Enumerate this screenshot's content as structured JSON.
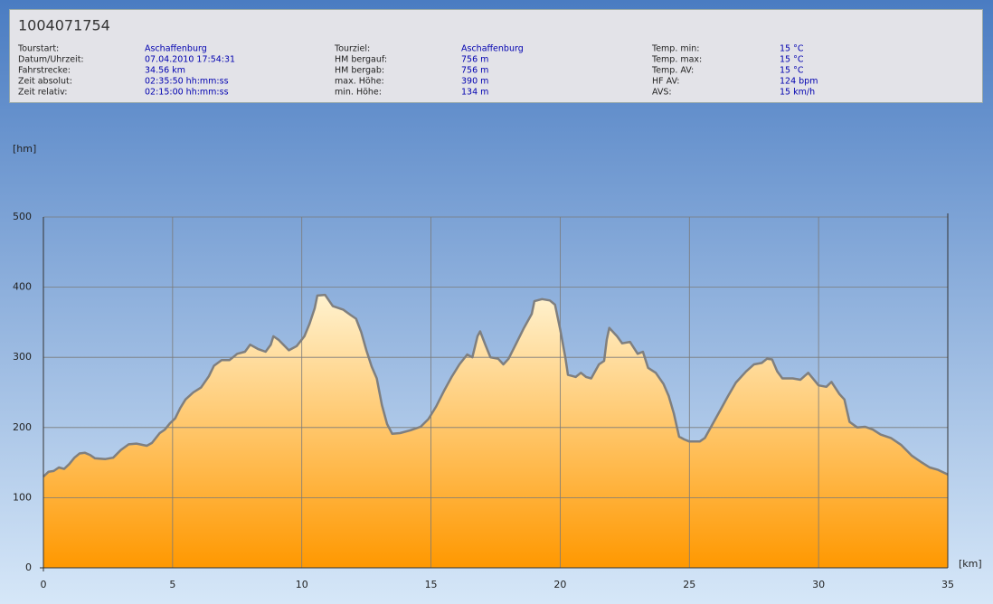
{
  "header": {
    "title": "1004071754",
    "columns": [
      [
        {
          "label": "Tourstart:",
          "value": "Aschaffenburg"
        },
        {
          "label": "Datum/Uhrzeit:",
          "value": "07.04.2010 17:54:31"
        },
        {
          "label": "Fahrstrecke:",
          "value": "34.56 km"
        },
        {
          "label": "Zeit absolut:",
          "value": "02:35:50 hh:mm:ss"
        },
        {
          "label": "Zeit relativ:",
          "value": "02:15:00 hh:mm:ss"
        }
      ],
      [
        {
          "label": "Tourziel:",
          "value": "Aschaffenburg"
        },
        {
          "label": "HM bergauf:",
          "value": "756 m"
        },
        {
          "label": "HM bergab:",
          "value": "756 m"
        },
        {
          "label": "max. Höhe:",
          "value": "390 m"
        },
        {
          "label": "min. Höhe:",
          "value": "134 m"
        }
      ],
      [
        {
          "label": "Temp. min:",
          "value": "15 °C"
        },
        {
          "label": "Temp. max:",
          "value": "15 °C"
        },
        {
          "label": "Temp. AV:",
          "value": "15 °C"
        },
        {
          "label": "HF AV:",
          "value": "124 bpm"
        },
        {
          "label": "AVS:",
          "value": "15 km/h"
        }
      ]
    ]
  },
  "chart_data": {
    "type": "area",
    "x_label": "[km]",
    "y_label": "[hm]",
    "x": [
      0,
      0.2,
      0.4,
      0.6,
      0.8,
      1.0,
      1.2,
      1.4,
      1.6,
      1.8,
      2.0,
      2.4,
      2.7,
      3.0,
      3.3,
      3.6,
      4.0,
      4.2,
      4.5,
      4.7,
      4.9,
      5.1,
      5.3,
      5.5,
      5.8,
      6.1,
      6.4,
      6.6,
      6.9,
      7.2,
      7.5,
      7.8,
      8.0,
      8.3,
      8.6,
      8.8,
      8.9,
      9.1,
      9.5,
      9.8,
      10.1,
      10.3,
      10.5,
      10.6,
      10.9,
      11.2,
      11.6,
      11.9,
      12.1,
      12.3,
      12.5,
      12.7,
      12.9,
      13.1,
      13.3,
      13.5,
      13.8,
      14.2,
      14.6,
      14.9,
      15.2,
      15.5,
      15.8,
      16.1,
      16.4,
      16.6,
      16.8,
      16.9,
      17.1,
      17.3,
      17.6,
      17.8,
      18.0,
      18.3,
      18.6,
      18.9,
      19.0,
      19.3,
      19.6,
      19.8,
      20.0,
      20.2,
      20.3,
      20.6,
      20.8,
      21.0,
      21.2,
      21.5,
      21.7,
      21.8,
      21.9,
      22.2,
      22.4,
      22.7,
      23.0,
      23.2,
      23.4,
      23.7,
      24.0,
      24.2,
      24.4,
      24.6,
      24.8,
      25.0,
      25.4,
      25.6,
      25.9,
      26.2,
      26.5,
      26.8,
      27.2,
      27.5,
      27.8,
      28.0,
      28.2,
      28.4,
      28.6,
      29.0,
      29.3,
      29.6,
      30.0,
      30.3,
      30.5,
      30.8,
      31.0,
      31.2,
      31.5,
      31.8,
      32.1,
      32.4,
      32.8,
      33.2,
      33.6,
      34.0,
      34.3,
      34.6,
      35.0
    ],
    "values": [
      130,
      137,
      138,
      143,
      141,
      148,
      157,
      163,
      164,
      161,
      156,
      155,
      157,
      168,
      176,
      177,
      174,
      178,
      192,
      197,
      206,
      213,
      228,
      240,
      250,
      257,
      273,
      288,
      296,
      296,
      305,
      308,
      318,
      312,
      308,
      318,
      330,
      325,
      310,
      316,
      330,
      348,
      370,
      388,
      389,
      373,
      368,
      360,
      355,
      336,
      310,
      287,
      270,
      232,
      205,
      191,
      192,
      196,
      201,
      212,
      230,
      252,
      272,
      290,
      304,
      300,
      330,
      337,
      318,
      300,
      298,
      290,
      298,
      320,
      342,
      362,
      380,
      383,
      381,
      375,
      340,
      300,
      275,
      272,
      278,
      272,
      270,
      290,
      295,
      325,
      342,
      330,
      320,
      322,
      305,
      308,
      285,
      278,
      262,
      245,
      220,
      187,
      183,
      180,
      180,
      185,
      205,
      225,
      245,
      264,
      280,
      290,
      292,
      298,
      297,
      280,
      270,
      270,
      268,
      278,
      260,
      258,
      265,
      248,
      240,
      208,
      200,
      201,
      197,
      190,
      185,
      175,
      160,
      150,
      143,
      140,
      133
    ],
    "xlim": [
      0,
      35
    ],
    "ylim": [
      0,
      500
    ],
    "xticks": [
      0,
      5,
      10,
      15,
      20,
      25,
      30,
      35
    ],
    "yticks": [
      0,
      100,
      200,
      300,
      400,
      500
    ],
    "grid": true,
    "line_color": "#7f7f7f",
    "fill_top": "#fff2cf",
    "fill_bottom": "#ff9800"
  }
}
